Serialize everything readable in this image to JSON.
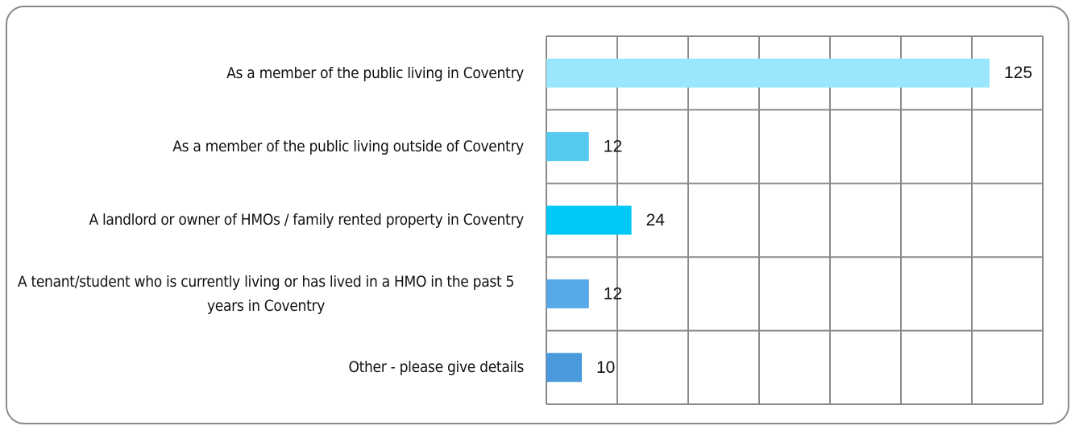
{
  "chart_data": {
    "type": "bar",
    "orientation": "horizontal",
    "categories": [
      "As a member of the public living in Coventry",
      "As a member of the public living outside of Coventry",
      "A landlord or owner of HMOs / family rented property in Coventry",
      "A tenant/student who is currently living or has lived in a HMO in the past 5 years in Coventry",
      "Other - please give details"
    ],
    "values": [
      125,
      12,
      24,
      12,
      10
    ],
    "colors": [
      "#9ae6fc",
      "#56c9ee",
      "#00c9f8",
      "#56a9e6",
      "#4a99dd"
    ],
    "xlim": [
      0,
      140
    ],
    "xticks": [
      0,
      20,
      40,
      60,
      80,
      100,
      120,
      140
    ],
    "grid": true
  }
}
